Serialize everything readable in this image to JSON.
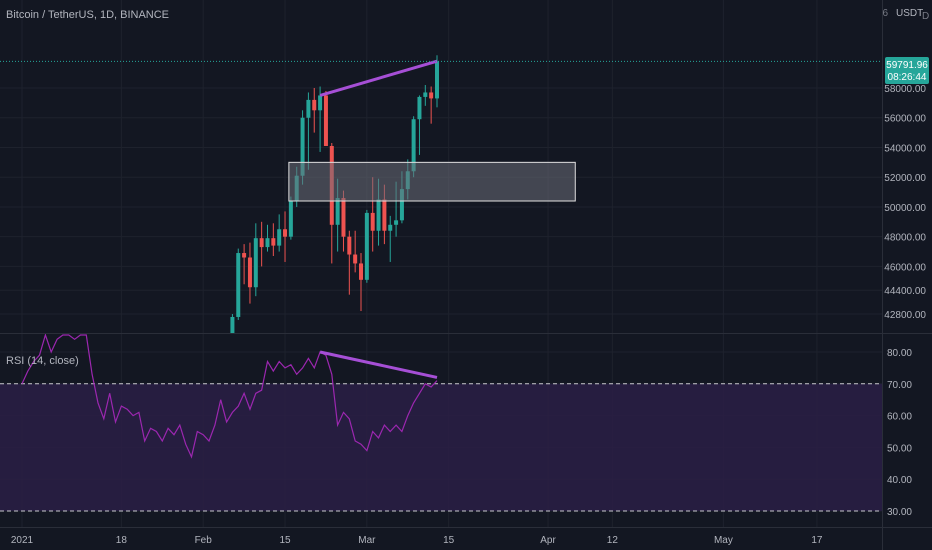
{
  "header": {
    "symbol_title": "Bitcoin / TetherUS, 1D, BINANCE",
    "currency": "USDT",
    "currency_marker": "6",
    "currency_marker_right": "D"
  },
  "price_tag": {
    "price": "59791.96",
    "countdown": "08:26:44"
  },
  "rsi": {
    "title": "RSI (14, close)"
  },
  "colors": {
    "background": "#131722",
    "up_candle": "#26a69a",
    "down_candle": "#ef5350",
    "rsi_line": "#9c27b0",
    "rsi_band": "#2a1f45",
    "divergence_line": "#a64fd6",
    "price_tag_bg": "#26a69a",
    "zone_fill": "#6b6e78"
  },
  "chart_data": [
    {
      "type": "candlestick",
      "title": "Bitcoin / TetherUS, 1D, BINANCE",
      "ylim": [
        41600,
        61000
      ],
      "y_ticks": [
        "58000.00",
        "56000.00",
        "54000.00",
        "52000.00",
        "50000.00",
        "48000.00",
        "46000.00",
        "44400.00",
        "42800.00"
      ],
      "y_tick_values": [
        58000,
        56000,
        54000,
        52000,
        50000,
        48000,
        46000,
        44400,
        42800
      ],
      "x_ticks": [
        "2021",
        "18",
        "Feb",
        "15",
        "Mar",
        "15",
        "Apr",
        "12",
        "May",
        "17"
      ],
      "x_tick_days": [
        0,
        17,
        31,
        45,
        59,
        73,
        90,
        101,
        120,
        136
      ],
      "last_price": 59791.96,
      "candles": [
        {
          "day": 36,
          "o": 38900,
          "h": 42800,
          "l": 38800,
          "c": 42600
        },
        {
          "day": 37,
          "o": 42600,
          "h": 47200,
          "l": 42400,
          "c": 46900
        },
        {
          "day": 38,
          "o": 46900,
          "h": 47500,
          "l": 44800,
          "c": 46600
        },
        {
          "day": 39,
          "o": 46600,
          "h": 47600,
          "l": 43500,
          "c": 44600
        },
        {
          "day": 40,
          "o": 44600,
          "h": 48900,
          "l": 44000,
          "c": 47900
        },
        {
          "day": 41,
          "o": 47900,
          "h": 49000,
          "l": 46000,
          "c": 47300
        },
        {
          "day": 42,
          "o": 47300,
          "h": 48800,
          "l": 47000,
          "c": 47900
        },
        {
          "day": 43,
          "o": 47900,
          "h": 48900,
          "l": 46700,
          "c": 47400
        },
        {
          "day": 44,
          "o": 47400,
          "h": 49500,
          "l": 47000,
          "c": 48500
        },
        {
          "day": 45,
          "o": 48500,
          "h": 49700,
          "l": 46300,
          "c": 48000
        },
        {
          "day": 46,
          "o": 48000,
          "h": 50700,
          "l": 47800,
          "c": 50400
        },
        {
          "day": 47,
          "o": 50400,
          "h": 52700,
          "l": 50000,
          "c": 52100
        },
        {
          "day": 48,
          "o": 52100,
          "h": 56500,
          "l": 51500,
          "c": 56000
        },
        {
          "day": 49,
          "o": 56000,
          "h": 57700,
          "l": 52500,
          "c": 57200
        },
        {
          "day": 50,
          "o": 57200,
          "h": 58000,
          "l": 55000,
          "c": 56500
        },
        {
          "day": 51,
          "o": 56500,
          "h": 58100,
          "l": 53700,
          "c": 57500
        },
        {
          "day": 52,
          "o": 57500,
          "h": 57800,
          "l": 54100,
          "c": 54100
        },
        {
          "day": 53,
          "o": 54100,
          "h": 54300,
          "l": 46200,
          "c": 48800
        },
        {
          "day": 54,
          "o": 48800,
          "h": 51900,
          "l": 47000,
          "c": 50600
        },
        {
          "day": 55,
          "o": 50600,
          "h": 51100,
          "l": 47000,
          "c": 48000
        },
        {
          "day": 56,
          "o": 48000,
          "h": 48400,
          "l": 44100,
          "c": 46800
        },
        {
          "day": 57,
          "o": 46800,
          "h": 48400,
          "l": 45600,
          "c": 46200
        },
        {
          "day": 58,
          "o": 46200,
          "h": 46900,
          "l": 43000,
          "c": 45100
        },
        {
          "day": 59,
          "o": 45100,
          "h": 49800,
          "l": 44900,
          "c": 49600
        },
        {
          "day": 60,
          "o": 49600,
          "h": 52000,
          "l": 47000,
          "c": 48400
        },
        {
          "day": 61,
          "o": 48400,
          "h": 51900,
          "l": 47400,
          "c": 50500
        },
        {
          "day": 62,
          "o": 50500,
          "h": 51500,
          "l": 47500,
          "c": 48400
        },
        {
          "day": 63,
          "o": 48400,
          "h": 49400,
          "l": 46300,
          "c": 48800
        },
        {
          "day": 64,
          "o": 48800,
          "h": 51700,
          "l": 48000,
          "c": 49100
        },
        {
          "day": 65,
          "o": 49100,
          "h": 52400,
          "l": 48900,
          "c": 51200
        },
        {
          "day": 66,
          "o": 51200,
          "h": 53200,
          "l": 50500,
          "c": 52400
        },
        {
          "day": 67,
          "o": 52400,
          "h": 56100,
          "l": 52000,
          "c": 55900
        },
        {
          "day": 68,
          "o": 55900,
          "h": 57500,
          "l": 53500,
          "c": 57400
        },
        {
          "day": 69,
          "o": 57400,
          "h": 58200,
          "l": 56800,
          "c": 57700
        },
        {
          "day": 70,
          "o": 57700,
          "h": 58100,
          "l": 55600,
          "c": 57300
        },
        {
          "day": 71,
          "o": 57300,
          "h": 60200,
          "l": 56700,
          "c": 59792
        }
      ],
      "annotations": {
        "trend_line": {
          "from": {
            "day": 51,
            "price": 57500
          },
          "to": {
            "day": 71,
            "price": 59800
          }
        },
        "zone": {
          "from_day": 46,
          "to_day": 95,
          "top": 53000,
          "bottom": 50400
        }
      }
    },
    {
      "type": "line",
      "title": "RSI (14, close)",
      "ylim": [
        28,
        90
      ],
      "y_ticks": [
        "80.00",
        "70.00",
        "60.00",
        "50.00",
        "40.00",
        "30.00"
      ],
      "y_tick_values": [
        80,
        70,
        60,
        50,
        40,
        30
      ],
      "band": [
        30,
        70
      ],
      "series": [
        {
          "x": [
            0,
            1,
            2,
            3,
            4,
            5,
            6,
            7,
            8,
            9,
            10,
            11,
            12,
            13,
            14,
            15,
            16,
            17,
            18,
            19,
            20,
            21,
            22,
            23,
            24,
            25,
            26,
            27,
            28,
            29,
            30,
            31,
            32,
            33,
            34,
            35,
            36,
            37,
            38,
            39,
            40,
            41,
            42,
            43,
            44,
            45,
            46,
            47,
            48,
            49,
            50,
            51,
            52,
            53,
            54,
            55,
            56,
            57,
            58,
            59,
            60,
            61,
            62,
            63,
            64,
            65,
            66,
            67,
            68,
            69,
            70,
            71
          ],
          "y": [
            70,
            74,
            77,
            79,
            86,
            80,
            84,
            86,
            90,
            84,
            86,
            88,
            73,
            64,
            59,
            67,
            58,
            63,
            62,
            60,
            61,
            52,
            56,
            55,
            52,
            56,
            54,
            57,
            51,
            47,
            55,
            54,
            52,
            57,
            65,
            58,
            61,
            63,
            67,
            62,
            67,
            68,
            77,
            74,
            77,
            75,
            76,
            73,
            75,
            78,
            75,
            80,
            79,
            73,
            57,
            61,
            59,
            52,
            51,
            49,
            55,
            53,
            57,
            55,
            57,
            55,
            60,
            64,
            67,
            70,
            69,
            71
          ]
        }
      ],
      "annotations": {
        "trend_line": {
          "from": {
            "day": 51,
            "value": 80
          },
          "to": {
            "day": 71,
            "value": 72
          }
        }
      }
    }
  ]
}
